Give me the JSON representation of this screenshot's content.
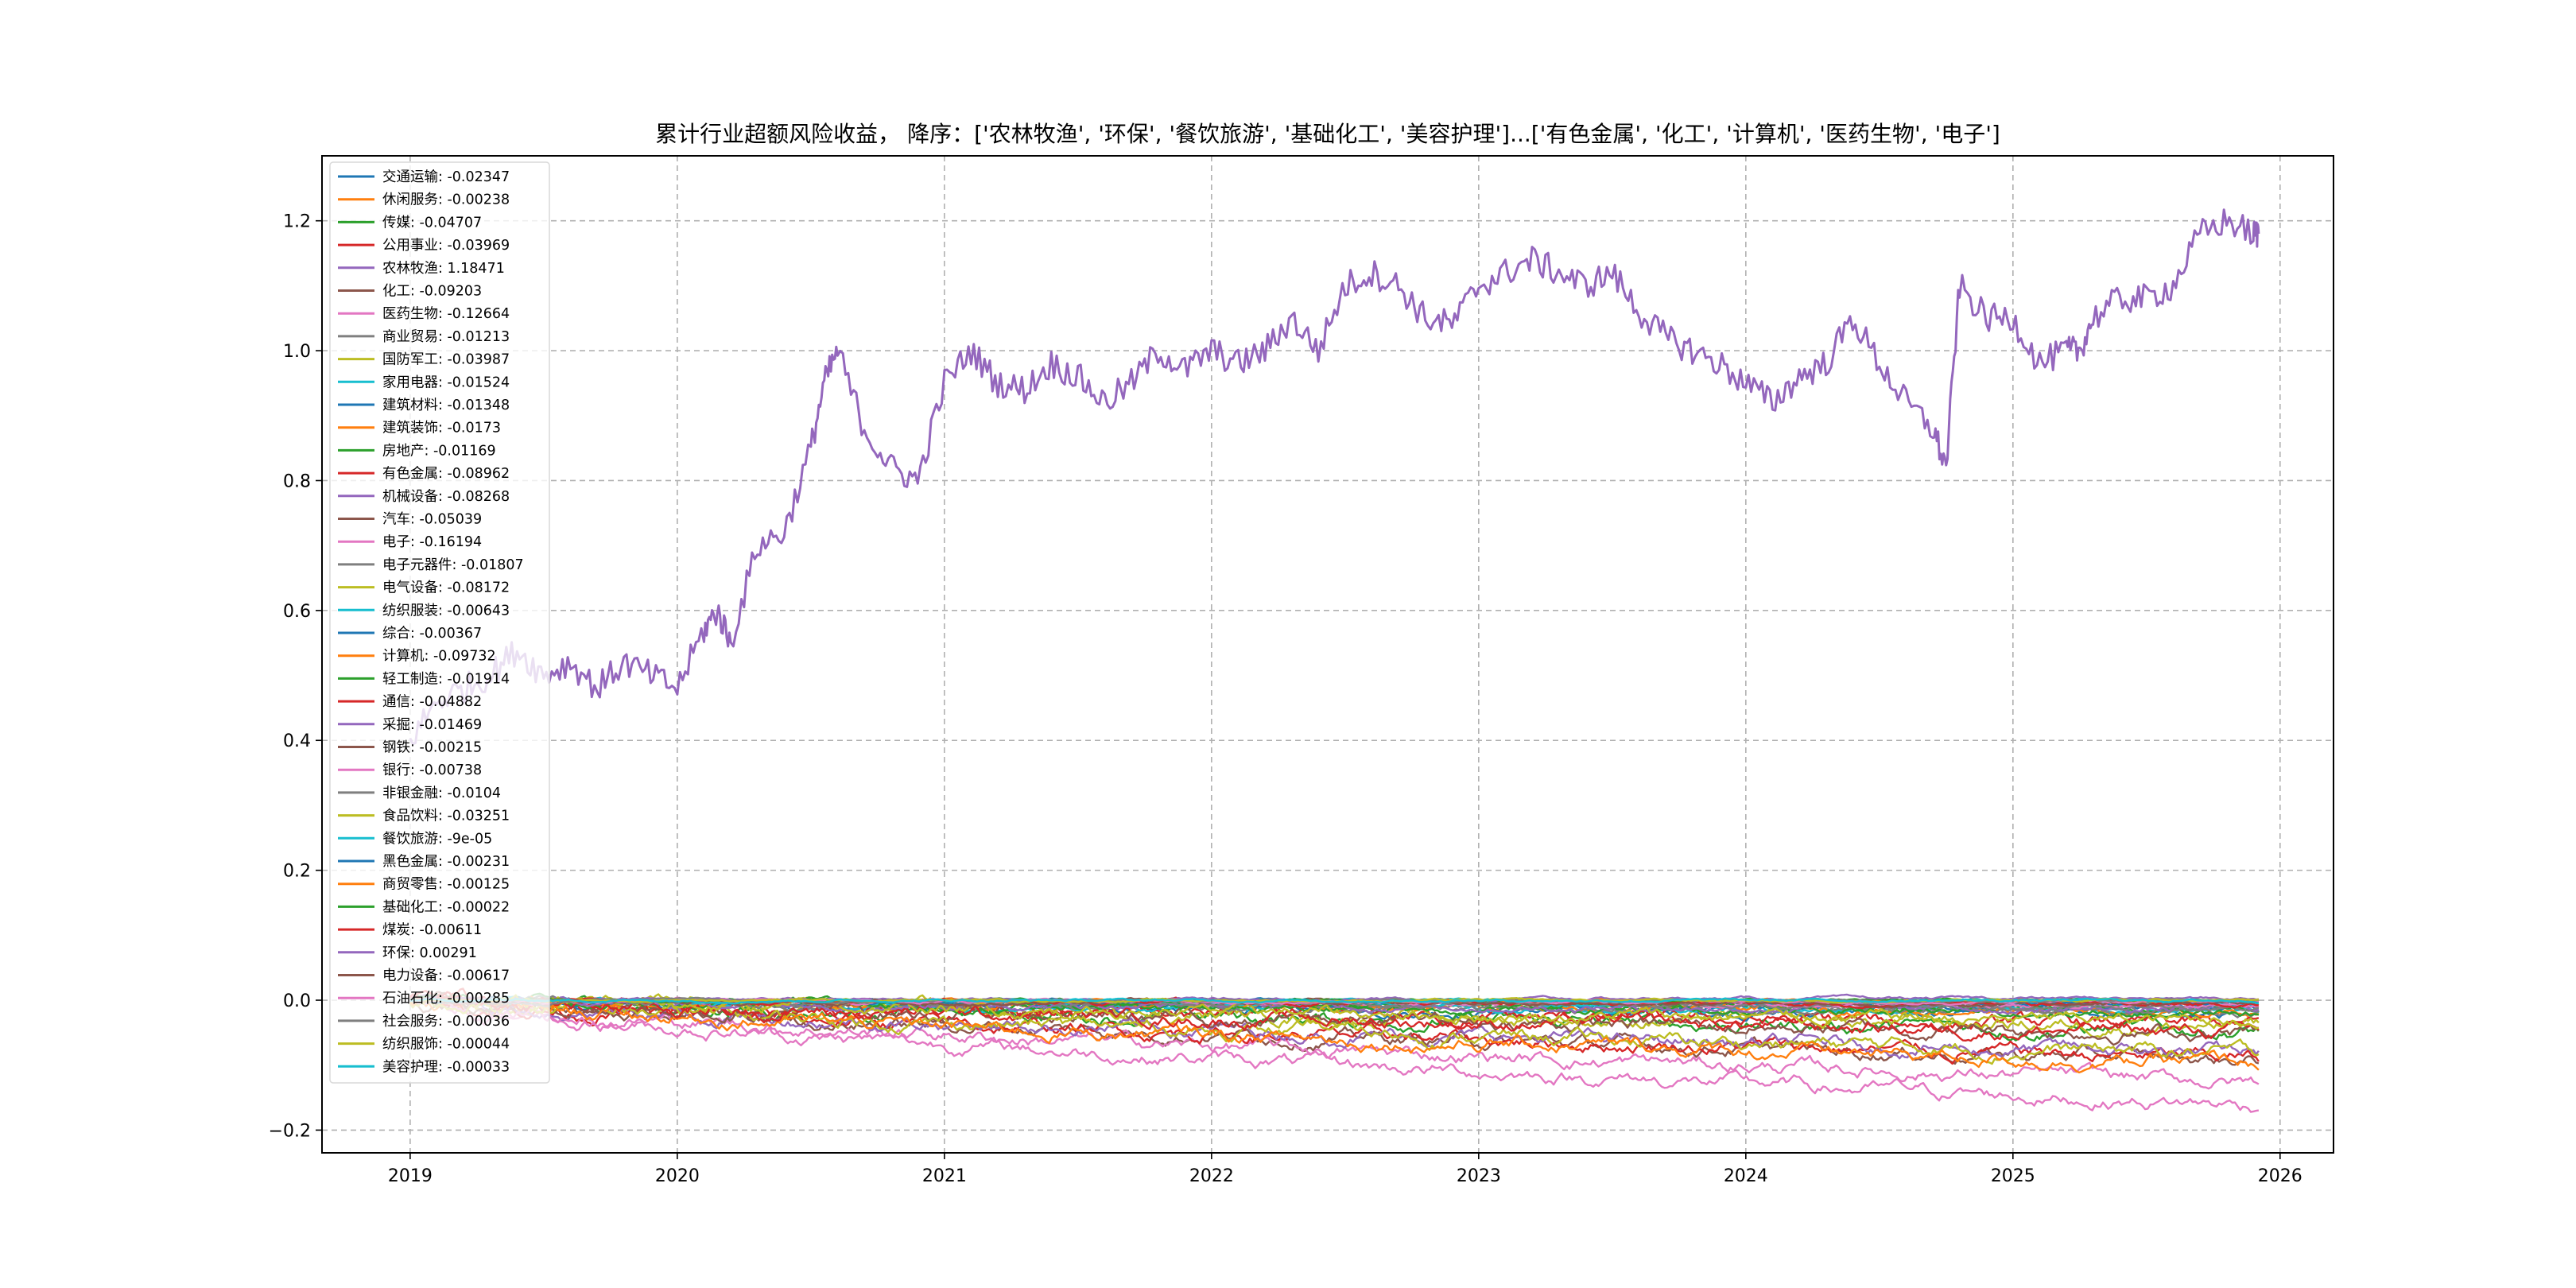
{
  "chart_data": {
    "type": "line",
    "title": "累计行业超额风险收益，  降序：['农林牧渔', '环保', '餐饮旅游', '基础化工', '美容护理']...['有色金属', '化工', '计算机', '医药生物', '电子']",
    "xlabel": "",
    "ylabel": "",
    "x_range": [
      "2018-09-01",
      "2026-03-15"
    ],
    "xlim": [
      2018.67,
      2026.2
    ],
    "ylim": [
      -0.235,
      1.3
    ],
    "x_ticks": [
      "2019",
      "2020",
      "2021",
      "2022",
      "2023",
      "2024",
      "2025",
      "2026"
    ],
    "y_ticks": [
      -0.2,
      0.0,
      0.2,
      0.4,
      0.6,
      0.8,
      1.0,
      1.2
    ],
    "y_tick_labels": [
      "−0.2",
      "0.0",
      "0.2",
      "0.4",
      "0.6",
      "0.8",
      "1.0",
      "1.2"
    ],
    "grid": true,
    "legend_position": "upper-left",
    "series": [
      {
        "name": "交通运输",
        "label": "交通运输: -0.02347",
        "color": "#1f77b4",
        "final": -0.02347
      },
      {
        "name": "休闲服务",
        "label": "休闲服务: -0.00238",
        "color": "#ff7f0e",
        "final": -0.00238
      },
      {
        "name": "传媒",
        "label": "传媒: -0.04707",
        "color": "#2ca02c",
        "final": -0.04707
      },
      {
        "name": "公用事业",
        "label": "公用事业: -0.03969",
        "color": "#d62728",
        "final": -0.03969
      },
      {
        "name": "农林牧渔",
        "label": "农林牧渔: 1.18471",
        "color": "#9467bd",
        "final": 1.18471,
        "x": [
          2019.0,
          2019.1,
          2019.2,
          2019.3,
          2019.4,
          2019.5,
          2019.6,
          2019.7,
          2019.8,
          2019.9,
          2020.0,
          2020.1,
          2020.15,
          2020.2,
          2020.3,
          2020.4,
          2020.5,
          2020.55,
          2020.6,
          2020.7,
          2020.8,
          2020.9,
          2021.0,
          2021.1,
          2021.2,
          2021.3,
          2021.4,
          2021.5,
          2021.6,
          2021.7,
          2021.8,
          2021.9,
          2022.0,
          2022.1,
          2022.2,
          2022.3,
          2022.4,
          2022.5,
          2022.6,
          2022.7,
          2022.8,
          2022.9,
          2023.0,
          2023.1,
          2023.2,
          2023.3,
          2023.4,
          2023.5,
          2023.6,
          2023.7,
          2023.8,
          2023.9,
          2024.0,
          2024.1,
          2024.2,
          2024.3,
          2024.4,
          2024.5,
          2024.6,
          2024.7,
          2024.75,
          2024.8,
          2024.9,
          2025.0,
          2025.1,
          2025.2,
          2025.25,
          2025.3,
          2025.4,
          2025.5,
          2025.6,
          2025.7,
          2025.8,
          2025.9,
          2025.92
        ],
        "y": [
          0.4,
          0.46,
          0.48,
          0.5,
          0.54,
          0.5,
          0.52,
          0.48,
          0.52,
          0.5,
          0.48,
          0.57,
          0.6,
          0.55,
          0.7,
          0.72,
          0.85,
          0.95,
          1.0,
          0.88,
          0.82,
          0.8,
          0.95,
          1.0,
          0.95,
          0.94,
          0.98,
          0.96,
          0.92,
          0.95,
          1.0,
          0.97,
          1.0,
          0.98,
          1.0,
          1.05,
          1.0,
          1.1,
          1.12,
          1.1,
          1.05,
          1.04,
          1.1,
          1.12,
          1.14,
          1.12,
          1.1,
          1.12,
          1.06,
          1.02,
          1.0,
          0.98,
          0.95,
          0.92,
          0.96,
          0.98,
          1.05,
          0.98,
          0.92,
          0.88,
          0.82,
          1.1,
          1.05,
          1.05,
          0.98,
          1.0,
          1.0,
          1.05,
          1.08,
          1.08,
          1.1,
          1.18,
          1.2,
          1.18,
          1.18
        ]
      },
      {
        "name": "化工",
        "label": "化工: -0.09203",
        "color": "#8c564b",
        "final": -0.09203
      },
      {
        "name": "医药生物",
        "label": "医药生物: -0.12664",
        "color": "#e377c2",
        "final": -0.12664
      },
      {
        "name": "商业贸易",
        "label": "商业贸易: -0.01213",
        "color": "#7f7f7f",
        "final": -0.01213
      },
      {
        "name": "国防军工",
        "label": "国防军工: -0.03987",
        "color": "#bcbd22",
        "final": -0.03987
      },
      {
        "name": "家用电器",
        "label": "家用电器: -0.01524",
        "color": "#17becf",
        "final": -0.01524
      },
      {
        "name": "建筑材料",
        "label": "建筑材料: -0.01348",
        "color": "#1f77b4",
        "final": -0.01348
      },
      {
        "name": "建筑装饰",
        "label": "建筑装饰: -0.0173",
        "color": "#ff7f0e",
        "final": -0.0173
      },
      {
        "name": "房地产",
        "label": "房地产: -0.01169",
        "color": "#2ca02c",
        "final": -0.01169
      },
      {
        "name": "有色金属",
        "label": "有色金属: -0.08962",
        "color": "#d62728",
        "final": -0.08962
      },
      {
        "name": "机械设备",
        "label": "机械设备: -0.08268",
        "color": "#9467bd",
        "final": -0.08268
      },
      {
        "name": "汽车",
        "label": "汽车: -0.05039",
        "color": "#8c564b",
        "final": -0.05039
      },
      {
        "name": "电子",
        "label": "电子: -0.16194",
        "color": "#e377c2",
        "final": -0.16194
      },
      {
        "name": "电子元器件",
        "label": "电子元器件: -0.01807",
        "color": "#7f7f7f",
        "final": -0.01807
      },
      {
        "name": "电气设备",
        "label": "电气设备: -0.08172",
        "color": "#bcbd22",
        "final": -0.08172
      },
      {
        "name": "纺织服装",
        "label": "纺织服装: -0.00643",
        "color": "#17becf",
        "final": -0.00643
      },
      {
        "name": "综合",
        "label": "综合: -0.00367",
        "color": "#1f77b4",
        "final": -0.00367
      },
      {
        "name": "计算机",
        "label": "计算机: -0.09732",
        "color": "#ff7f0e",
        "final": -0.09732
      },
      {
        "name": "轻工制造",
        "label": "轻工制造: -0.01914",
        "color": "#2ca02c",
        "final": -0.01914
      },
      {
        "name": "通信",
        "label": "通信: -0.04882",
        "color": "#d62728",
        "final": -0.04882
      },
      {
        "name": "采掘",
        "label": "采掘: -0.01469",
        "color": "#9467bd",
        "final": -0.01469
      },
      {
        "name": "钢铁",
        "label": "钢铁: -0.00215",
        "color": "#8c564b",
        "final": -0.00215
      },
      {
        "name": "银行",
        "label": "银行: -0.00738",
        "color": "#e377c2",
        "final": -0.00738
      },
      {
        "name": "非银金融",
        "label": "非银金融: -0.0104",
        "color": "#7f7f7f",
        "final": -0.0104
      },
      {
        "name": "食品饮料",
        "label": "食品饮料: -0.03251",
        "color": "#bcbd22",
        "final": -0.03251
      },
      {
        "name": "餐饮旅游",
        "label": "餐饮旅游: -9e-05",
        "color": "#17becf",
        "final": -9e-05
      },
      {
        "name": "黑色金属",
        "label": "黑色金属: -0.00231",
        "color": "#1f77b4",
        "final": -0.00231
      },
      {
        "name": "商贸零售",
        "label": "商贸零售: -0.00125",
        "color": "#ff7f0e",
        "final": -0.00125
      },
      {
        "name": "基础化工",
        "label": "基础化工: -0.00022",
        "color": "#2ca02c",
        "final": -0.00022
      },
      {
        "name": "煤炭",
        "label": "煤炭: -0.00611",
        "color": "#d62728",
        "final": -0.00611
      },
      {
        "name": "环保",
        "label": "环保: 0.00291",
        "color": "#9467bd",
        "final": 0.00291
      },
      {
        "name": "电力设备",
        "label": "电力设备: -0.00617",
        "color": "#8c564b",
        "final": -0.00617
      },
      {
        "name": "石油石化",
        "label": "石油石化: -0.00285",
        "color": "#e377c2",
        "final": -0.00285
      },
      {
        "name": "社会服务",
        "label": "社会服务: -0.00036",
        "color": "#7f7f7f",
        "final": -0.00036
      },
      {
        "name": "纺织服饰",
        "label": "纺织服饰: -0.00044",
        "color": "#bcbd22",
        "final": -0.00044
      },
      {
        "name": "美容护理",
        "label": "美容护理: -0.00033",
        "color": "#17becf",
        "final": -0.00033
      }
    ]
  }
}
